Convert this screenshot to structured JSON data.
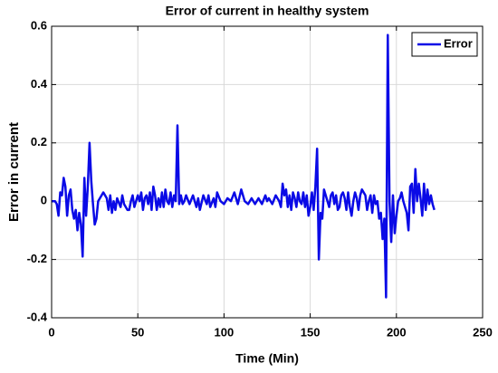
{
  "chart_data": {
    "type": "line",
    "title": "Error of current in healthy system",
    "xlabel": "Time (Min)",
    "ylabel": "Error in current",
    "x": [
      0,
      2,
      3,
      4,
      5,
      6,
      7,
      8,
      9,
      10,
      11,
      12,
      13,
      14,
      15,
      16,
      17,
      18,
      19,
      20,
      21,
      22,
      23,
      24,
      25,
      26,
      27,
      28,
      30,
      32,
      33,
      34,
      35,
      36,
      37,
      38,
      40,
      41,
      42,
      44,
      45,
      46,
      47,
      48,
      50,
      51,
      52,
      53,
      54,
      55,
      56,
      57,
      58,
      59,
      60,
      61,
      62,
      63,
      64,
      65,
      66,
      67,
      68,
      69,
      70,
      71,
      72,
      73,
      74,
      75,
      76,
      77,
      78,
      80,
      82,
      84,
      85,
      86,
      88,
      90,
      91,
      92,
      94,
      95,
      96,
      98,
      100,
      102,
      104,
      106,
      108,
      110,
      112,
      114,
      116,
      118,
      120,
      122,
      124,
      125,
      126,
      128,
      130,
      132,
      133,
      134,
      135,
      136,
      137,
      138,
      139,
      140,
      141,
      142,
      143,
      144,
      145,
      146,
      147,
      148,
      149,
      150,
      151,
      152,
      153,
      154,
      155,
      156,
      157,
      158,
      159,
      160,
      161,
      162,
      163,
      164,
      165,
      166,
      167,
      168,
      169,
      170,
      171,
      172,
      173,
      174,
      175,
      176,
      177,
      178,
      179,
      180,
      182,
      183,
      184,
      185,
      186,
      187,
      188,
      189,
      190,
      191,
      192,
      193,
      194,
      195,
      196,
      197,
      198,
      199,
      200,
      201,
      202,
      203,
      204,
      205,
      206,
      207,
      208,
      209,
      210,
      211,
      212,
      213,
      214,
      215,
      216,
      217,
      218,
      219,
      220,
      221,
      222
    ],
    "series": [
      {
        "name": "Error",
        "color": "#0a0ae6",
        "values": [
          0,
          0,
          -0.01,
          -0.05,
          0.03,
          0.02,
          0.08,
          0.05,
          -0.05,
          0.02,
          0.04,
          -0.03,
          -0.06,
          -0.03,
          -0.1,
          -0.04,
          -0.08,
          -0.19,
          0.08,
          -0.05,
          0.05,
          0.2,
          0.07,
          -0.01,
          -0.08,
          -0.06,
          0,
          0.01,
          0.03,
          0.01,
          -0.03,
          0.02,
          -0.04,
          0,
          -0.03,
          0.01,
          -0.02,
          0.02,
          -0.01,
          -0.03,
          -0.03,
          0,
          0.02,
          -0.02,
          0.02,
          0,
          0.03,
          -0.03,
          0.01,
          0.02,
          -0.01,
          0.03,
          -0.03,
          0.05,
          0.02,
          -0.03,
          0.01,
          -0.02,
          0.03,
          -0.02,
          0.04,
          0,
          -0.01,
          0.03,
          -0.02,
          0.02,
          0,
          0.26,
          -0.01,
          0.02,
          -0.01,
          0,
          0.02,
          -0.01,
          0.02,
          -0.02,
          0.01,
          -0.03,
          0.02,
          -0.01,
          0.02,
          -0.02,
          0.01,
          -0.02,
          0.03,
          0,
          -0.01,
          0.01,
          0,
          0.03,
          -0.01,
          0.04,
          0,
          -0.01,
          0.01,
          -0.01,
          0.01,
          -0.01,
          0.02,
          0,
          0.01,
          -0.01,
          0.02,
          0,
          -0.02,
          0.06,
          0.02,
          0.04,
          -0.02,
          0.02,
          -0.03,
          0.03,
          0.01,
          -0.02,
          0.03,
          0,
          -0.01,
          0.03,
          -0.02,
          0.02,
          -0.05,
          -0.02,
          0.03,
          -0.03,
          0.05,
          0.18,
          -0.2,
          -0.04,
          -0.06,
          0.04,
          0.02,
          0,
          -0.02,
          0.02,
          0.03,
          -0.01,
          0.02,
          -0.03,
          -0.02,
          0.02,
          0.03,
          0.01,
          -0.03,
          0.03,
          -0.02,
          -0.05,
          0,
          0.03,
          0.01,
          -0.03,
          0.02,
          0.04,
          0.02,
          -0.03,
          0,
          0.02,
          -0.04,
          0.02,
          -0.01,
          0,
          -0.06,
          -0.04,
          -0.13,
          -0.06,
          -0.33,
          0.57,
          0,
          -0.14,
          0.02,
          -0.11,
          -0.05,
          0,
          0.01,
          0.03,
          0,
          -0.02,
          -0.04,
          -0.1,
          0.05,
          0.06,
          -0.04,
          0.11,
          0,
          0.06,
          0.01,
          -0.05,
          0.06,
          -0.03,
          0.04,
          -0.01,
          0.02,
          -0.01,
          -0.03
        ]
      }
    ],
    "xlim": [
      0,
      250
    ],
    "xticks": [
      0,
      50,
      100,
      150,
      200,
      250
    ],
    "ylim": [
      -0.4,
      0.6
    ],
    "yticks": [
      -0.4,
      -0.2,
      0,
      0.2,
      0.4,
      0.6
    ],
    "grid": true,
    "legend": "northeast"
  }
}
